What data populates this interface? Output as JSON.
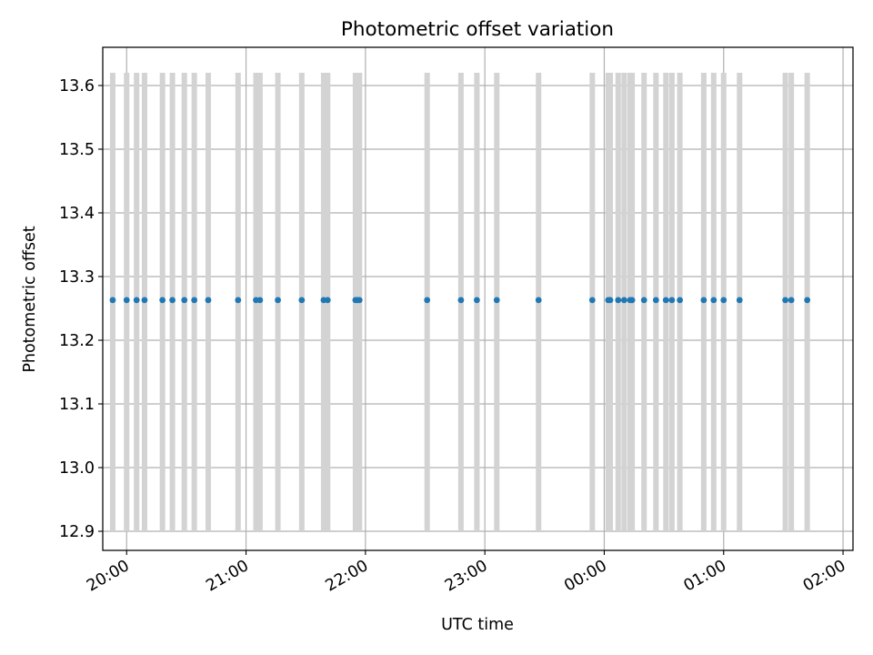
{
  "chart_data": {
    "type": "scatter",
    "title": "Photometric offset variation",
    "xlabel": "UTC time",
    "ylabel": "Photometric offset",
    "x_is_time": true,
    "xlim": [
      "19:48",
      "02:05"
    ],
    "ylim": [
      12.87,
      13.66
    ],
    "x_ticks": [
      "20:00",
      "21:00",
      "22:00",
      "23:00",
      "00:00",
      "01:00",
      "02:00"
    ],
    "y_ticks": [
      12.9,
      13.0,
      13.1,
      13.2,
      13.3,
      13.4,
      13.5,
      13.6
    ],
    "grid": true,
    "colors": {
      "points": "#1f77b4",
      "bands": "#d3d3d3",
      "grid": "#b0b0b0"
    },
    "band_range": [
      12.9,
      13.62
    ],
    "series": [
      {
        "x": [
          "19:53",
          "20:00",
          "20:05",
          "20:09",
          "20:18",
          "20:23",
          "20:29",
          "20:34",
          "20:41",
          "20:56",
          "21:05",
          "21:07",
          "21:16",
          "21:28",
          "21:39",
          "21:41",
          "21:55",
          "21:56",
          "21:57",
          "22:31",
          "22:48",
          "22:56",
          "23:06",
          "23:27",
          "23:54",
          "24:02",
          "24:03",
          "24:07",
          "24:10",
          "24:13",
          "24:14",
          "24:20",
          "24:26",
          "24:31",
          "24:34",
          "24:38",
          "24:50",
          "24:55",
          "25:00",
          "25:08",
          "25:31",
          "25:34",
          "25:42"
        ],
        "y": [
          13.263,
          13.263,
          13.263,
          13.263,
          13.263,
          13.263,
          13.263,
          13.263,
          13.263,
          13.263,
          13.263,
          13.263,
          13.263,
          13.263,
          13.263,
          13.263,
          13.263,
          13.263,
          13.263,
          13.263,
          13.263,
          13.263,
          13.263,
          13.263,
          13.263,
          13.263,
          13.263,
          13.263,
          13.263,
          13.263,
          13.263,
          13.263,
          13.263,
          13.263,
          13.263,
          13.263,
          13.263,
          13.263,
          13.263,
          13.263,
          13.263,
          13.263,
          13.263
        ]
      }
    ]
  }
}
